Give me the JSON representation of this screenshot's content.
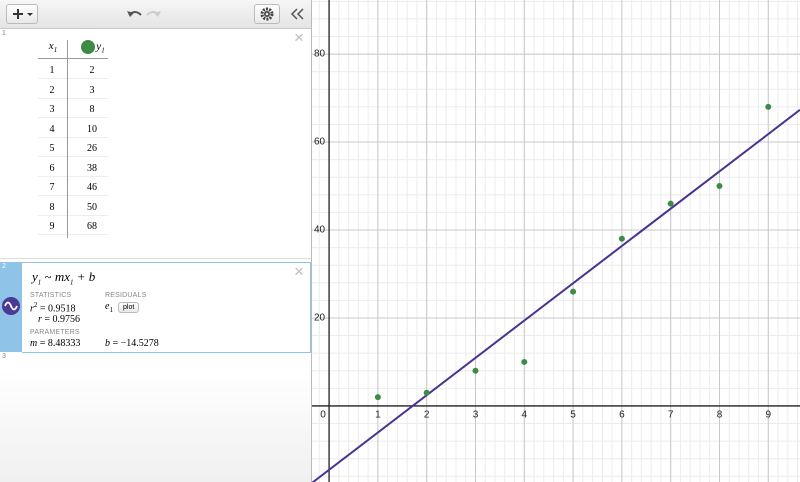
{
  "expressions": [
    {
      "index": "1",
      "table": {
        "headers": [
          {
            "var": "x",
            "sub": "1"
          },
          {
            "var": "y",
            "sub": "1"
          }
        ],
        "rows": [
          [
            1,
            2
          ],
          [
            2,
            3
          ],
          [
            3,
            8
          ],
          [
            4,
            10
          ],
          [
            5,
            26
          ],
          [
            6,
            38
          ],
          [
            7,
            46
          ],
          [
            8,
            50
          ],
          [
            9,
            68
          ]
        ]
      }
    },
    {
      "index": "2",
      "formula": {
        "y": "y",
        "y_sub": "1",
        "tilde": "~",
        "mx": "mx",
        "x_sub": "1",
        "plus_b": "+ b"
      },
      "equals": "=",
      "statistics_label": "STATISTICS",
      "r2": {
        "name": "r",
        "sup": "2",
        "value": 0.9518
      },
      "r": {
        "name": "r",
        "value": 0.9756
      },
      "residuals_label": "RESIDUALS",
      "residual": {
        "var": "e",
        "sub": "1",
        "button": "plot"
      },
      "parameters_label": "PARAMETERS",
      "m": {
        "name": "m",
        "value": 8.48333
      },
      "b": {
        "name": "b",
        "value": {
          "value": -14.5278,
          "label": "−14.5278"
        }
      }
    },
    {
      "index": "3"
    }
  ],
  "graph": {
    "xlim": [
      -0.35,
      9.65
    ],
    "ylim": [
      -17.3,
      92.3
    ],
    "xticks": [
      0,
      1,
      2,
      3,
      4,
      5,
      6,
      7,
      8,
      9
    ],
    "yticks": [
      20,
      40,
      60,
      80
    ],
    "point_color": "#3d8b46",
    "line_color": "#4a3290"
  }
}
